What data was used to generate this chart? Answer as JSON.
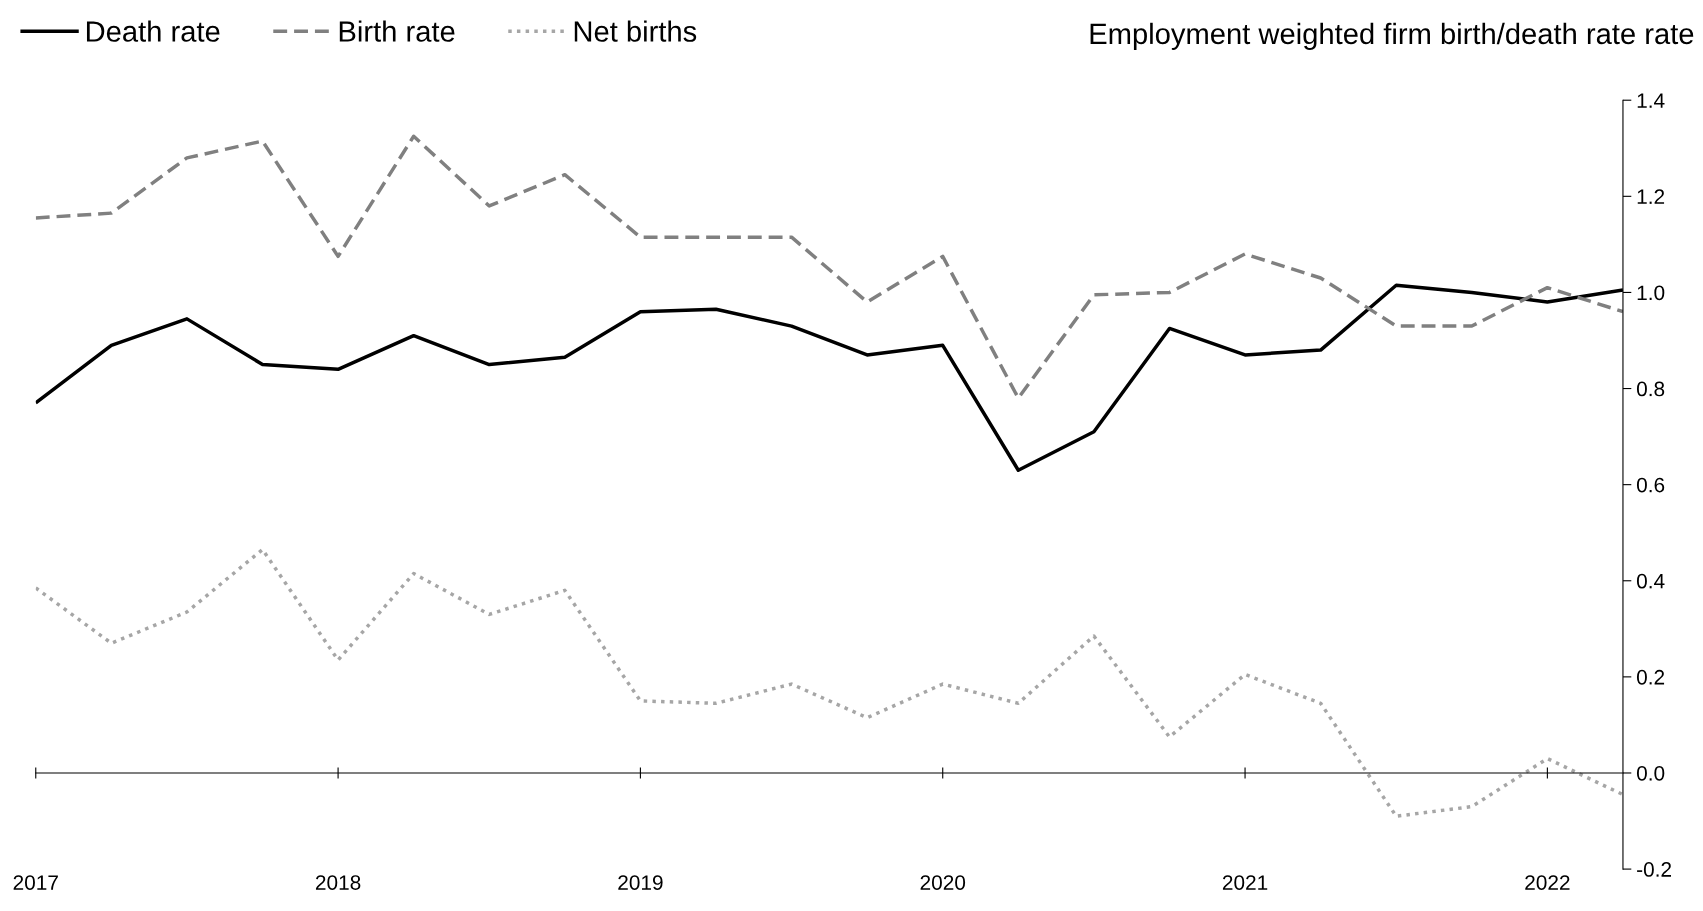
{
  "chart_data": {
    "type": "line",
    "ylabel": "Employment weighted firm birth/death rate rate",
    "x": [
      2017.0,
      2017.25,
      2017.5,
      2017.75,
      2018.0,
      2018.25,
      2018.5,
      2018.75,
      2019.0,
      2019.25,
      2019.5,
      2019.75,
      2020.0,
      2020.25,
      2020.5,
      2020.75,
      2021.0,
      2021.25,
      2021.5,
      2021.75,
      2022.0,
      2022.25
    ],
    "series": [
      {
        "name": "Death rate",
        "color": "#000000",
        "line_style": "solid",
        "values": [
          0.77,
          0.89,
          0.945,
          0.85,
          0.84,
          0.91,
          0.85,
          0.865,
          0.96,
          0.965,
          0.93,
          0.87,
          0.89,
          0.63,
          0.71,
          0.925,
          0.87,
          0.88,
          1.015,
          1.0,
          0.98,
          1.005
        ]
      },
      {
        "name": "Birth rate",
        "color": "#808080",
        "line_style": "dashed",
        "values": [
          1.155,
          1.165,
          1.28,
          1.315,
          1.075,
          1.325,
          1.18,
          1.245,
          1.115,
          1.115,
          1.115,
          0.98,
          1.075,
          0.78,
          0.995,
          1.0,
          1.08,
          1.03,
          0.93,
          0.93,
          1.01,
          0.96
        ]
      },
      {
        "name": "Net births",
        "color": "#a6a6a6",
        "line_style": "dotted",
        "values": [
          0.385,
          0.27,
          0.335,
          0.465,
          0.235,
          0.415,
          0.33,
          0.38,
          0.15,
          0.145,
          0.185,
          0.115,
          0.185,
          0.145,
          0.285,
          0.075,
          0.205,
          0.145,
          -0.09,
          -0.07,
          0.03,
          -0.045
        ]
      }
    ],
    "xlim": [
      2017.0,
      2022.25
    ],
    "xticks": [
      2017,
      2018,
      2019,
      2020,
      2021,
      2022
    ],
    "ylim": [
      -0.2,
      1.4
    ],
    "yticks": [
      -0.2,
      {
        "value": 0.0,
        "label": "0.0"
      },
      0.2,
      0.4,
      0.6,
      0.8,
      {
        "value": 1.0,
        "label": "1.0"
      },
      1.2,
      1.4
    ],
    "legend": "top left",
    "marker": "none"
  }
}
